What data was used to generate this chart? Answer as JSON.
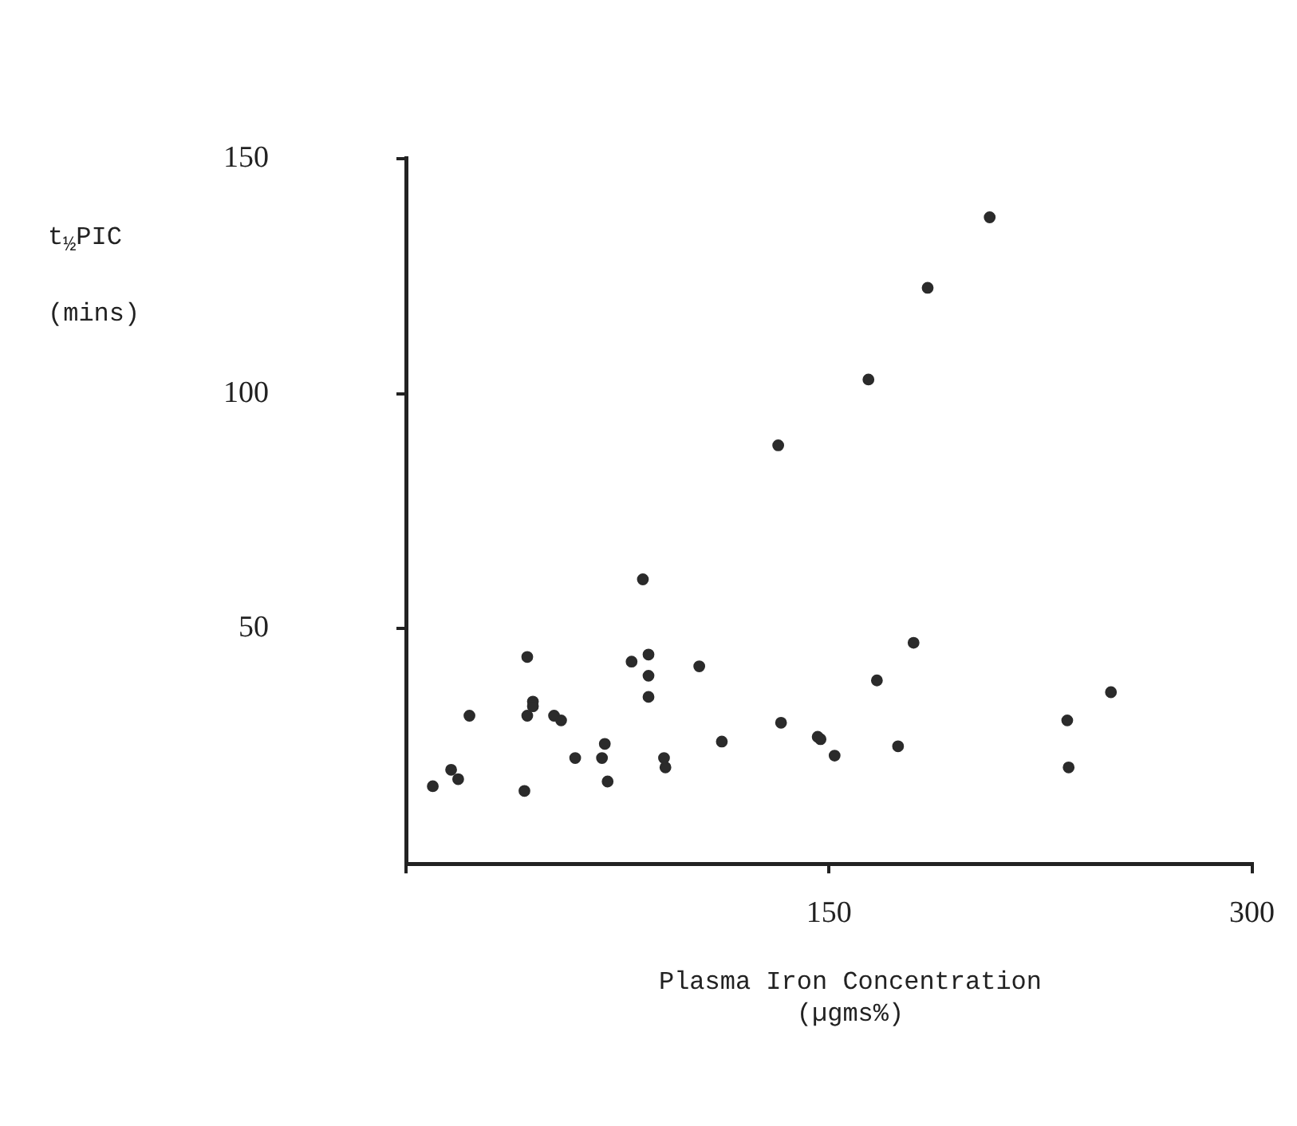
{
  "chart_data": {
    "type": "scatter",
    "xlabel": "Plasma Iron Concentration (µgms%)",
    "ylabel": "t$_{½}$PIC (mins)",
    "x": [
      84,
      43,
      86,
      80,
      86,
      104,
      86,
      45,
      45,
      22.5,
      43,
      52.5,
      55,
      133,
      146,
      147,
      152,
      112,
      70.5,
      60,
      69.5,
      91.5,
      92,
      16,
      18.5,
      9.5,
      42,
      71.5,
      180,
      167,
      174.5,
      250,
      234.5,
      235,
      207,
      185,
      164,
      132
    ],
    "series": [
      {
        "color": "#2b2b2b",
        "values": [
          60.5,
          44,
          44.5,
          43,
          40,
          42,
          35.5,
          34.5,
          33.5,
          31.5,
          31.5,
          31.5,
          30.5,
          30,
          27,
          26.5,
          23,
          26,
          25.5,
          22.5,
          22.5,
          22.5,
          20.5,
          20,
          18,
          16.5,
          15.5,
          17.5,
          47,
          39,
          25,
          36.5,
          30.5,
          20.5,
          137.5,
          122.5,
          103,
          89
        ]
      }
    ],
    "xlim": [
      0,
      300
    ],
    "ylim": [
      0,
      150
    ],
    "xticks": [
      {
        "value": 0,
        "label": null
      },
      150,
      300
    ],
    "yticks": [
      50,
      100,
      150
    ],
    "grid": false,
    "legend": false,
    "marker": "circle"
  }
}
